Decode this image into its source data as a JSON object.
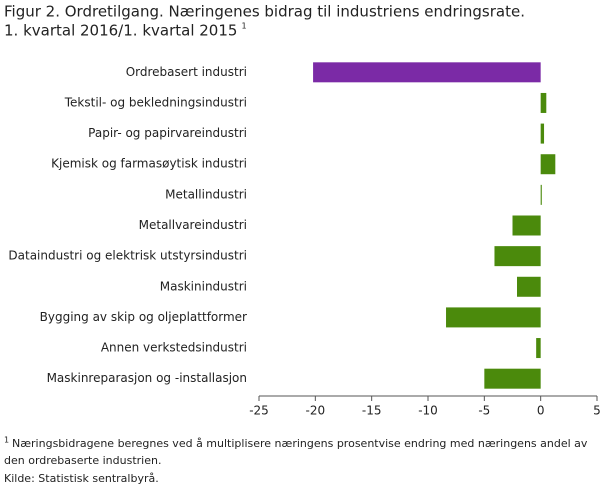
{
  "chart_data": {
    "type": "hbar",
    "title": [
      "Figur 2. Ordretilgang. Næringenes bidrag til industriens endringsrate.",
      "1. kvartal 2016/1. kvartal 2015"
    ],
    "title_note": "1",
    "categories": [
      "Ordrebasert industri",
      "Tekstil- og bekledningsindustri",
      "Papir- og papirvareindustri",
      "Kjemisk og farmasøytisk industri",
      "Metallindustri",
      "Metallvareindustri",
      "Dataindustri og elektrisk utstyrsindustri",
      "Maskinindustri",
      "Bygging av skip og oljeplattformer",
      "Annen verkstedsindustri",
      "Maskinreparasjon og -installasjon"
    ],
    "values": [
      -20.2,
      0.5,
      0.3,
      1.3,
      0.1,
      -2.5,
      -4.1,
      -2.1,
      -8.4,
      -0.4,
      -5.0
    ],
    "colors": [
      "#7b2aa6",
      "#4b8a0c",
      "#4b8a0c",
      "#4b8a0c",
      "#4b8a0c",
      "#4b8a0c",
      "#4b8a0c",
      "#4b8a0c",
      "#4b8a0c",
      "#4b8a0c",
      "#4b8a0c"
    ],
    "xlim": [
      -25,
      5
    ],
    "xticks": [
      -25,
      -20,
      -15,
      -10,
      -5,
      0,
      5
    ],
    "footnote_mark": "1",
    "footnote": [
      "Næringsbidragene beregnes ved å multiplisere næringens prosentvise endring med næringens andel av",
      "den ordrebaserte industrien."
    ],
    "source": "Kilde: Statistisk sentralbyrå."
  }
}
